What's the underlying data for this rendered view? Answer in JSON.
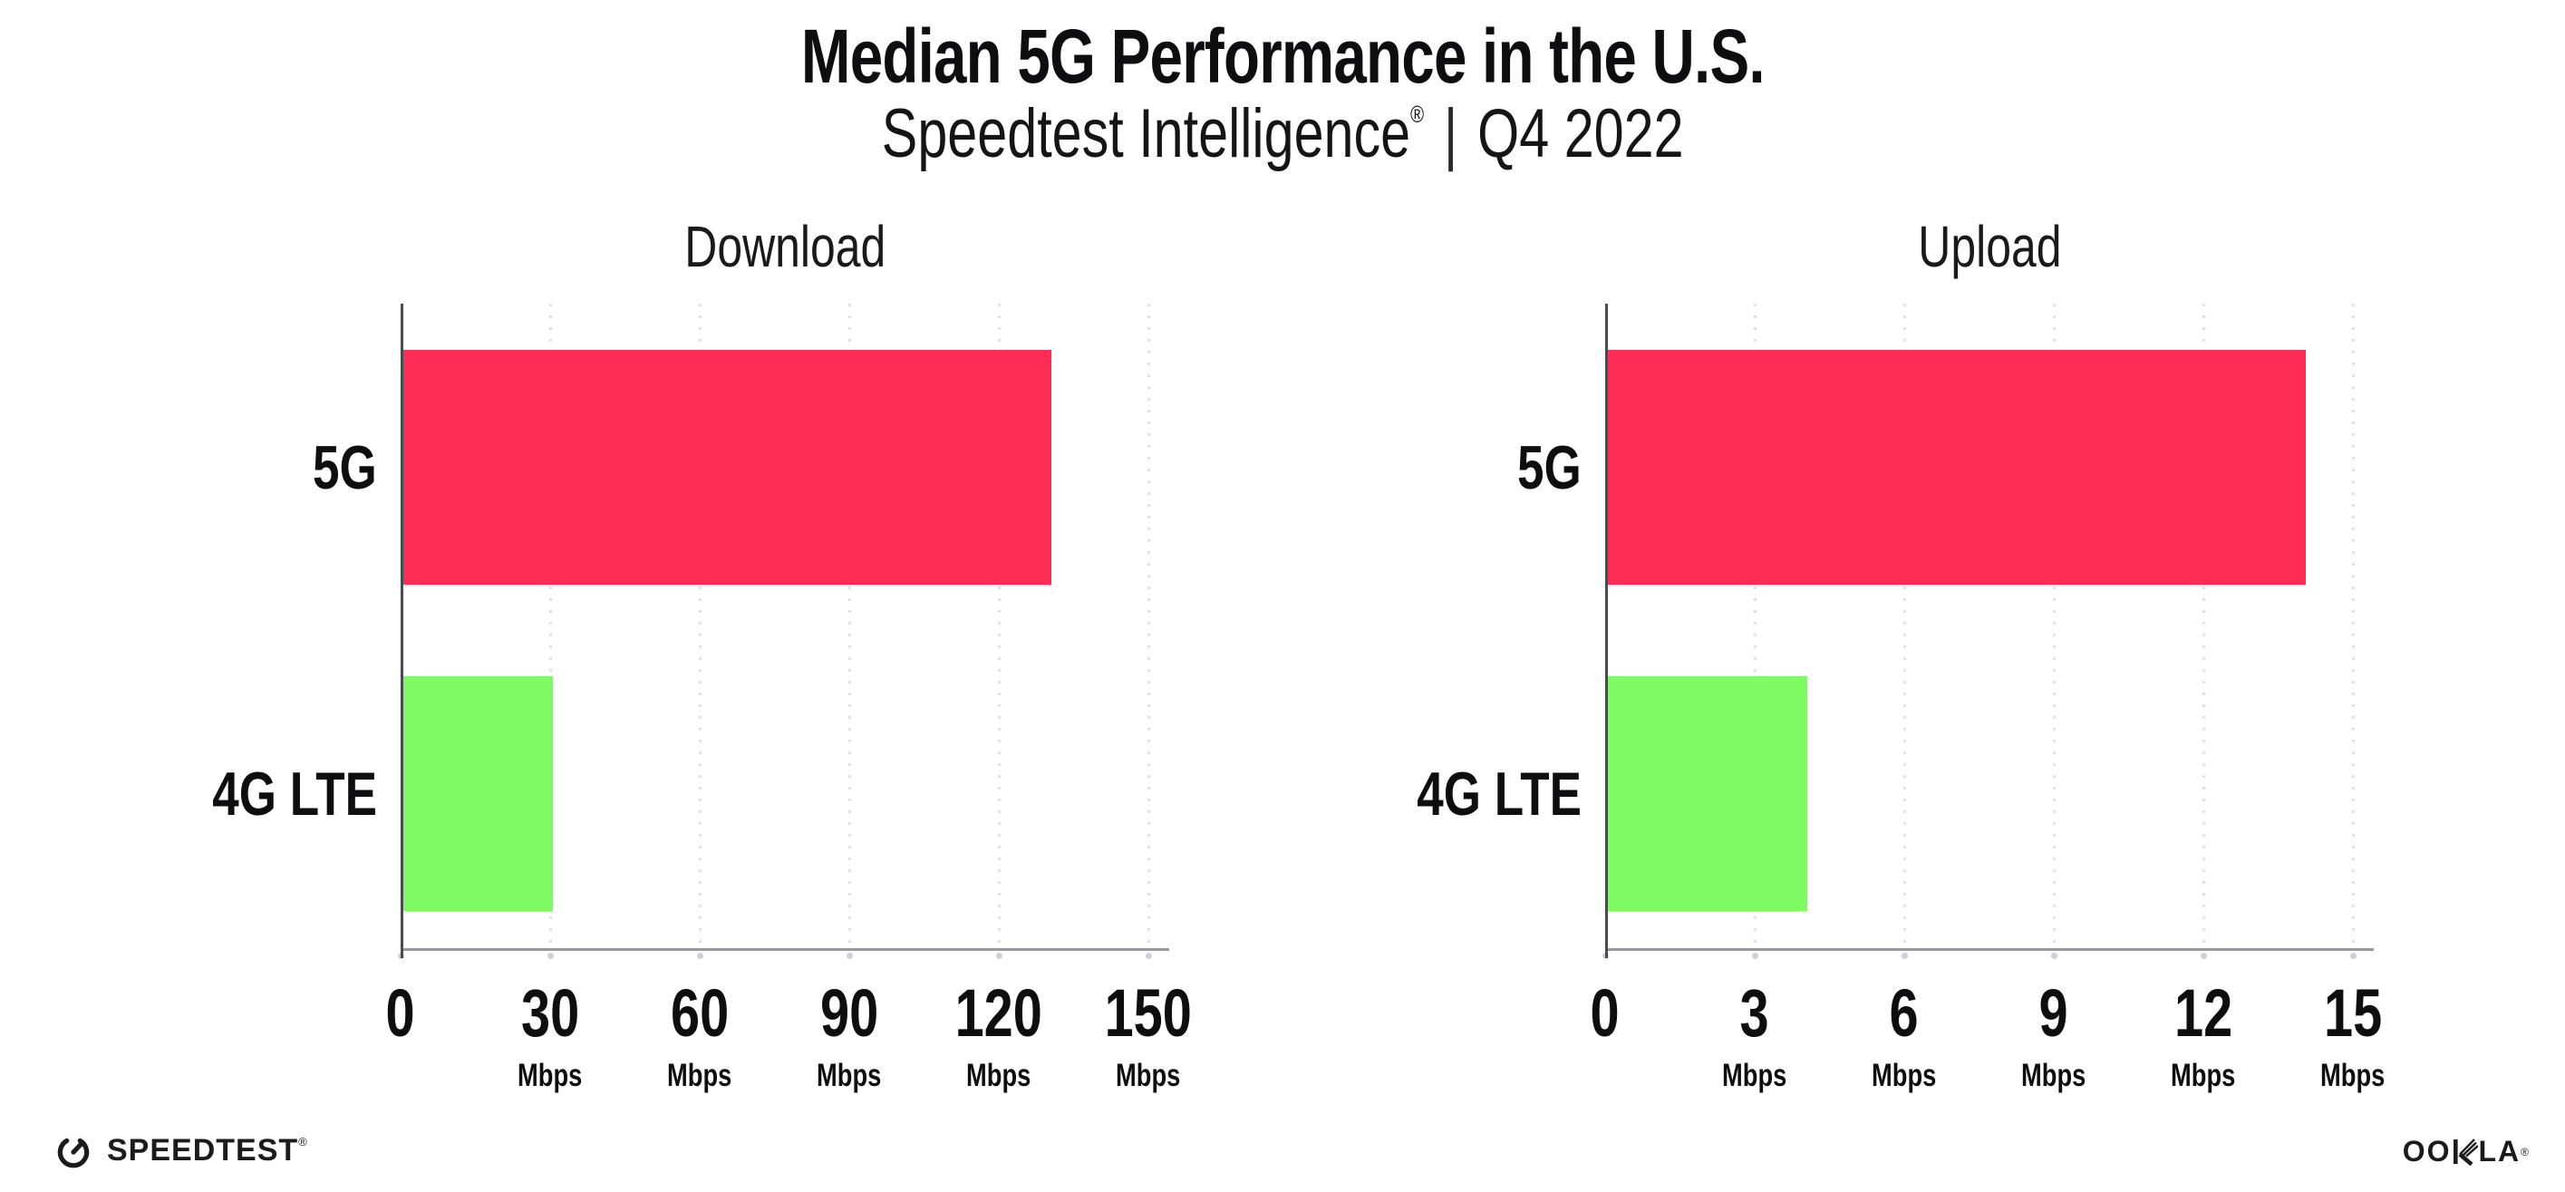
{
  "header": {
    "title": "Median 5G Performance in the U.S.",
    "subtitle_brand": "Speedtest Intelligence",
    "subtitle_reg": "®",
    "subtitle_divider": "|",
    "subtitle_period": "Q4 2022"
  },
  "chart_data": [
    {
      "type": "bar",
      "orientation": "horizontal",
      "title": "Download",
      "categories": [
        "5G",
        "4G LTE"
      ],
      "values": [
        130,
        30
      ],
      "unit": "Mbps",
      "xticks": [
        0,
        30,
        60,
        90,
        120,
        150
      ],
      "xlim": [
        0,
        154
      ],
      "grid": "dotted vertical gridlines at each tick",
      "legend": "none",
      "bar_colors": [
        "#FF2D55",
        "#7EFB62"
      ]
    },
    {
      "type": "bar",
      "orientation": "horizontal",
      "title": "Upload",
      "categories": [
        "5G",
        "4G LTE"
      ],
      "values": [
        14,
        4
      ],
      "unit": "Mbps",
      "xticks": [
        0,
        3,
        6,
        9,
        12,
        15
      ],
      "xlim": [
        0,
        15.4
      ],
      "grid": "dotted vertical gridlines at each tick",
      "legend": "none",
      "bar_colors": [
        "#FF2D55",
        "#7EFB62"
      ]
    }
  ],
  "colors": {
    "bar_5g": "#FF2D55",
    "bar_4g_lte": "#7EFB62",
    "axis_line": "#98989E",
    "axis_spine": "#4A4A52",
    "gridline_dots": "#DFE0E9",
    "tick_dots": "#CCD0DB",
    "text": "#0E0E10"
  },
  "footer": {
    "speedtest_wordmark": "SPEEDTEST",
    "speedtest_reg": "®",
    "ookla_left": "OO",
    "ookla_right": "LA",
    "ookla_wordmark": "OOKLA",
    "ookla_reg": "®"
  }
}
